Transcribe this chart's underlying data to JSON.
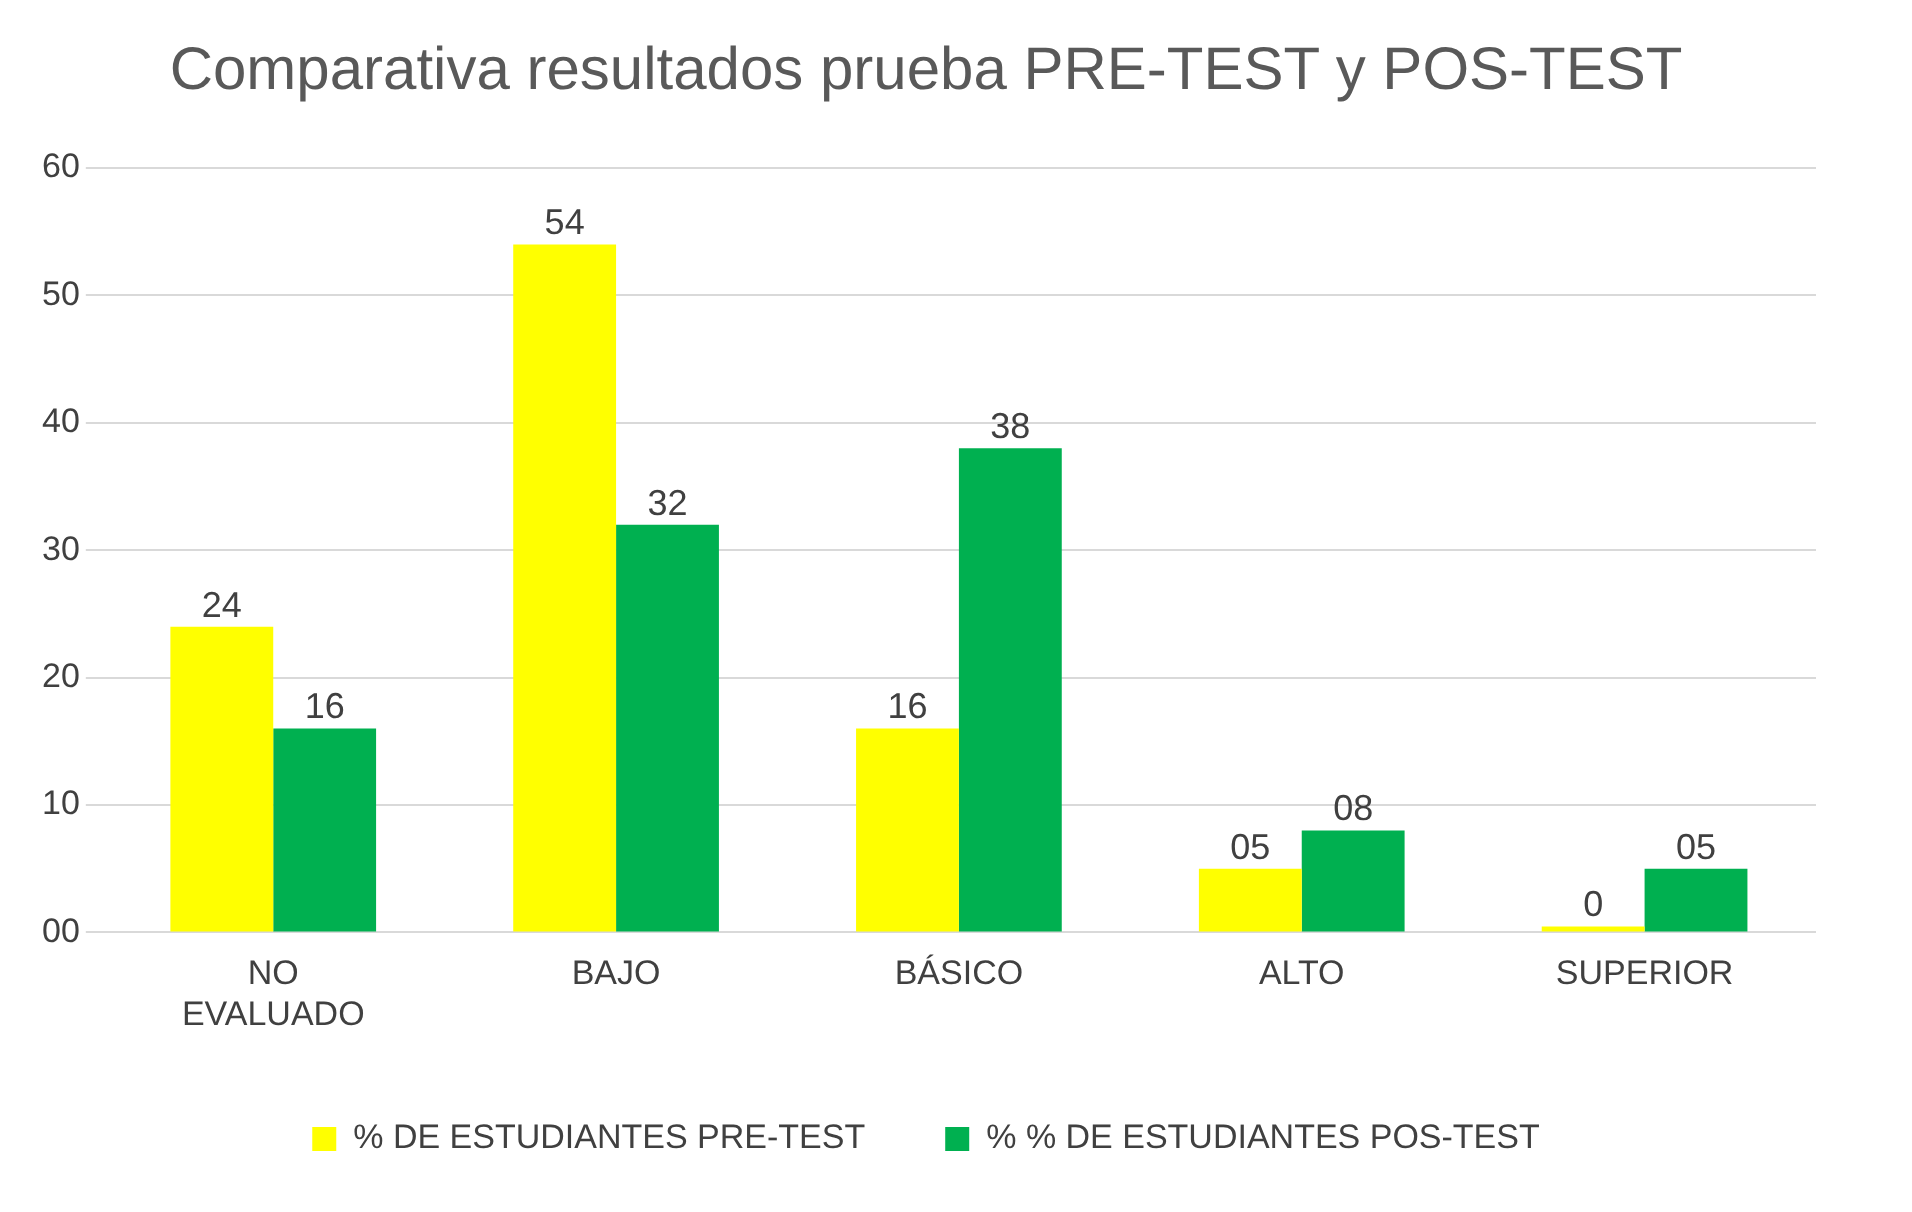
{
  "chart_data": {
    "type": "bar",
    "title": "Comparativa resultados prueba PRE-TEST y POS-TEST",
    "categories": [
      "NO EVALUADO",
      "BAJO",
      "BÁSICO",
      "ALTO",
      "SUPERIOR"
    ],
    "series": [
      {
        "name": "% DE ESTUDIANTES PRE-TEST",
        "color": "#ffff00",
        "values": [
          24,
          54,
          16,
          5,
          0
        ],
        "value_labels": [
          "24",
          "54",
          "16",
          "05",
          "0"
        ]
      },
      {
        "name": "% % DE ESTUDIANTES POS-TEST",
        "color": "#00b050",
        "values": [
          16,
          32,
          38,
          8,
          5
        ],
        "value_labels": [
          "16",
          "32",
          "38",
          "08",
          "05"
        ]
      }
    ],
    "ylim": [
      0,
      60
    ],
    "yticks": [
      {
        "value": 0,
        "label": "00"
      },
      10,
      20,
      30,
      40,
      50,
      60
    ],
    "grid": "y",
    "legend": "bottom"
  }
}
